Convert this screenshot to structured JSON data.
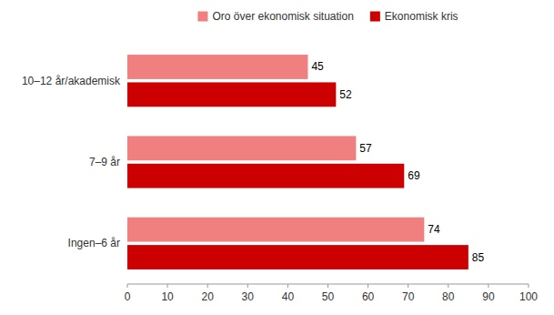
{
  "chart_data": {
    "type": "bar",
    "orientation": "horizontal",
    "categories": [
      "Ingen–6 år",
      "7–9 år",
      "10–12 år/akademisk"
    ],
    "series": [
      {
        "name": "Oro över ekonomisk situation",
        "color": "#f08080",
        "values": [
          74,
          57,
          45
        ]
      },
      {
        "name": "Ekonomisk kris",
        "color": "#cc0000",
        "values": [
          85,
          69,
          52
        ]
      }
    ],
    "xlim": [
      0,
      100
    ],
    "xticks": [
      0,
      10,
      20,
      30,
      40,
      50,
      60,
      70,
      80,
      90,
      100
    ],
    "grid": false,
    "legend": "top",
    "data_labels": true
  }
}
